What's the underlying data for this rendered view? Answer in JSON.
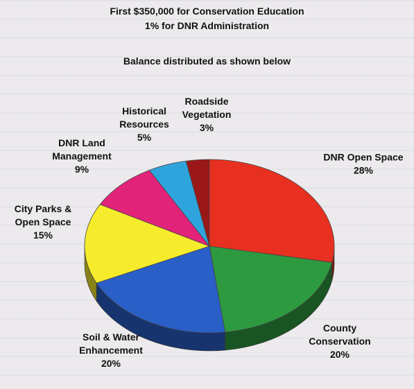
{
  "header": {
    "line1": "First $350,000 for Conservation Education",
    "line2": "1% for DNR Administration",
    "line3": "Balance distributed as shown below"
  },
  "chart_data": {
    "type": "pie",
    "style": "3d",
    "title": "",
    "slices": [
      {
        "label": [
          "DNR Open Space"
        ],
        "value": 28,
        "value_label": "28%",
        "color": "#e83020"
      },
      {
        "label": [
          "County",
          "Conservation"
        ],
        "value": 20,
        "value_label": "20%",
        "color": "#2e9a40"
      },
      {
        "label": [
          "Soil & Water",
          "Enhancement"
        ],
        "value": 20,
        "value_label": "20%",
        "color": "#2a5fc8"
      },
      {
        "label": [
          "City Parks &",
          "Open Space"
        ],
        "value": 15,
        "value_label": "15%",
        "color": "#f6ec2c"
      },
      {
        "label": [
          "DNR Land",
          "Management"
        ],
        "value": 9,
        "value_label": "9%",
        "color": "#e2237a"
      },
      {
        "label": [
          "Historical",
          "Resources"
        ],
        "value": 5,
        "value_label": "5%",
        "color": "#2fa4dc"
      },
      {
        "label": [
          "Roadside",
          "Vegetation"
        ],
        "value": 3,
        "value_label": "3%",
        "color": "#9a1818"
      }
    ]
  }
}
